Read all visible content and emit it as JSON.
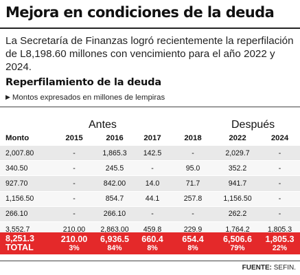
{
  "headline": "Mejora en condiciones de la deuda",
  "intro": "La Secretaría de Finanzas logró recientemente la reperfilación de L8,198.60 millones con vencimiento para el año 2022 y 2024.",
  "table_title": "Reperfilamiento de la deuda",
  "note": "Montos expresados en millones de lempiras",
  "note_icon": "triangle-right-icon",
  "groups": {
    "before": "Antes",
    "after": "Después"
  },
  "columns": [
    "Monto",
    "2015",
    "2016",
    "2017",
    "2018",
    "2022",
    "2024"
  ],
  "rows": [
    [
      "2,007.80",
      "-",
      "1,865.3",
      "142.5",
      "-",
      "2,029.7",
      "-"
    ],
    [
      "340.50",
      "-",
      "245.5",
      "-",
      "95.0",
      "352.2",
      "-"
    ],
    [
      "927.70",
      "-",
      "842.00",
      "14.0",
      "71.7",
      "941.7",
      "-"
    ],
    [
      "1,156.50",
      "-",
      "854.7",
      "44.1",
      "257.8",
      "1,156.50",
      "-"
    ],
    [
      "266.10",
      "-",
      "266.10",
      "-",
      "-",
      "262.2",
      "-"
    ],
    [
      "3,552.7",
      "210.00",
      "2,863.00",
      "459.8",
      "229.9",
      "1,764.2",
      "1,805.3"
    ]
  ],
  "total": {
    "amount": "8,251.3",
    "label": "TOTAL",
    "values": [
      "210.00",
      "6,936.5",
      "660.4",
      "654.4",
      "6,506.6",
      "1,805.3"
    ],
    "percents": [
      "3%",
      "84%",
      "8%",
      "8%",
      "79%",
      "22%"
    ]
  },
  "source": {
    "label": "FUENTE:",
    "value": "SEFIN."
  },
  "colors": {
    "total_row": "#e4292a",
    "row_dark": "#e9e9e9",
    "row_light": "#f7f7f7",
    "text": "#111111"
  }
}
